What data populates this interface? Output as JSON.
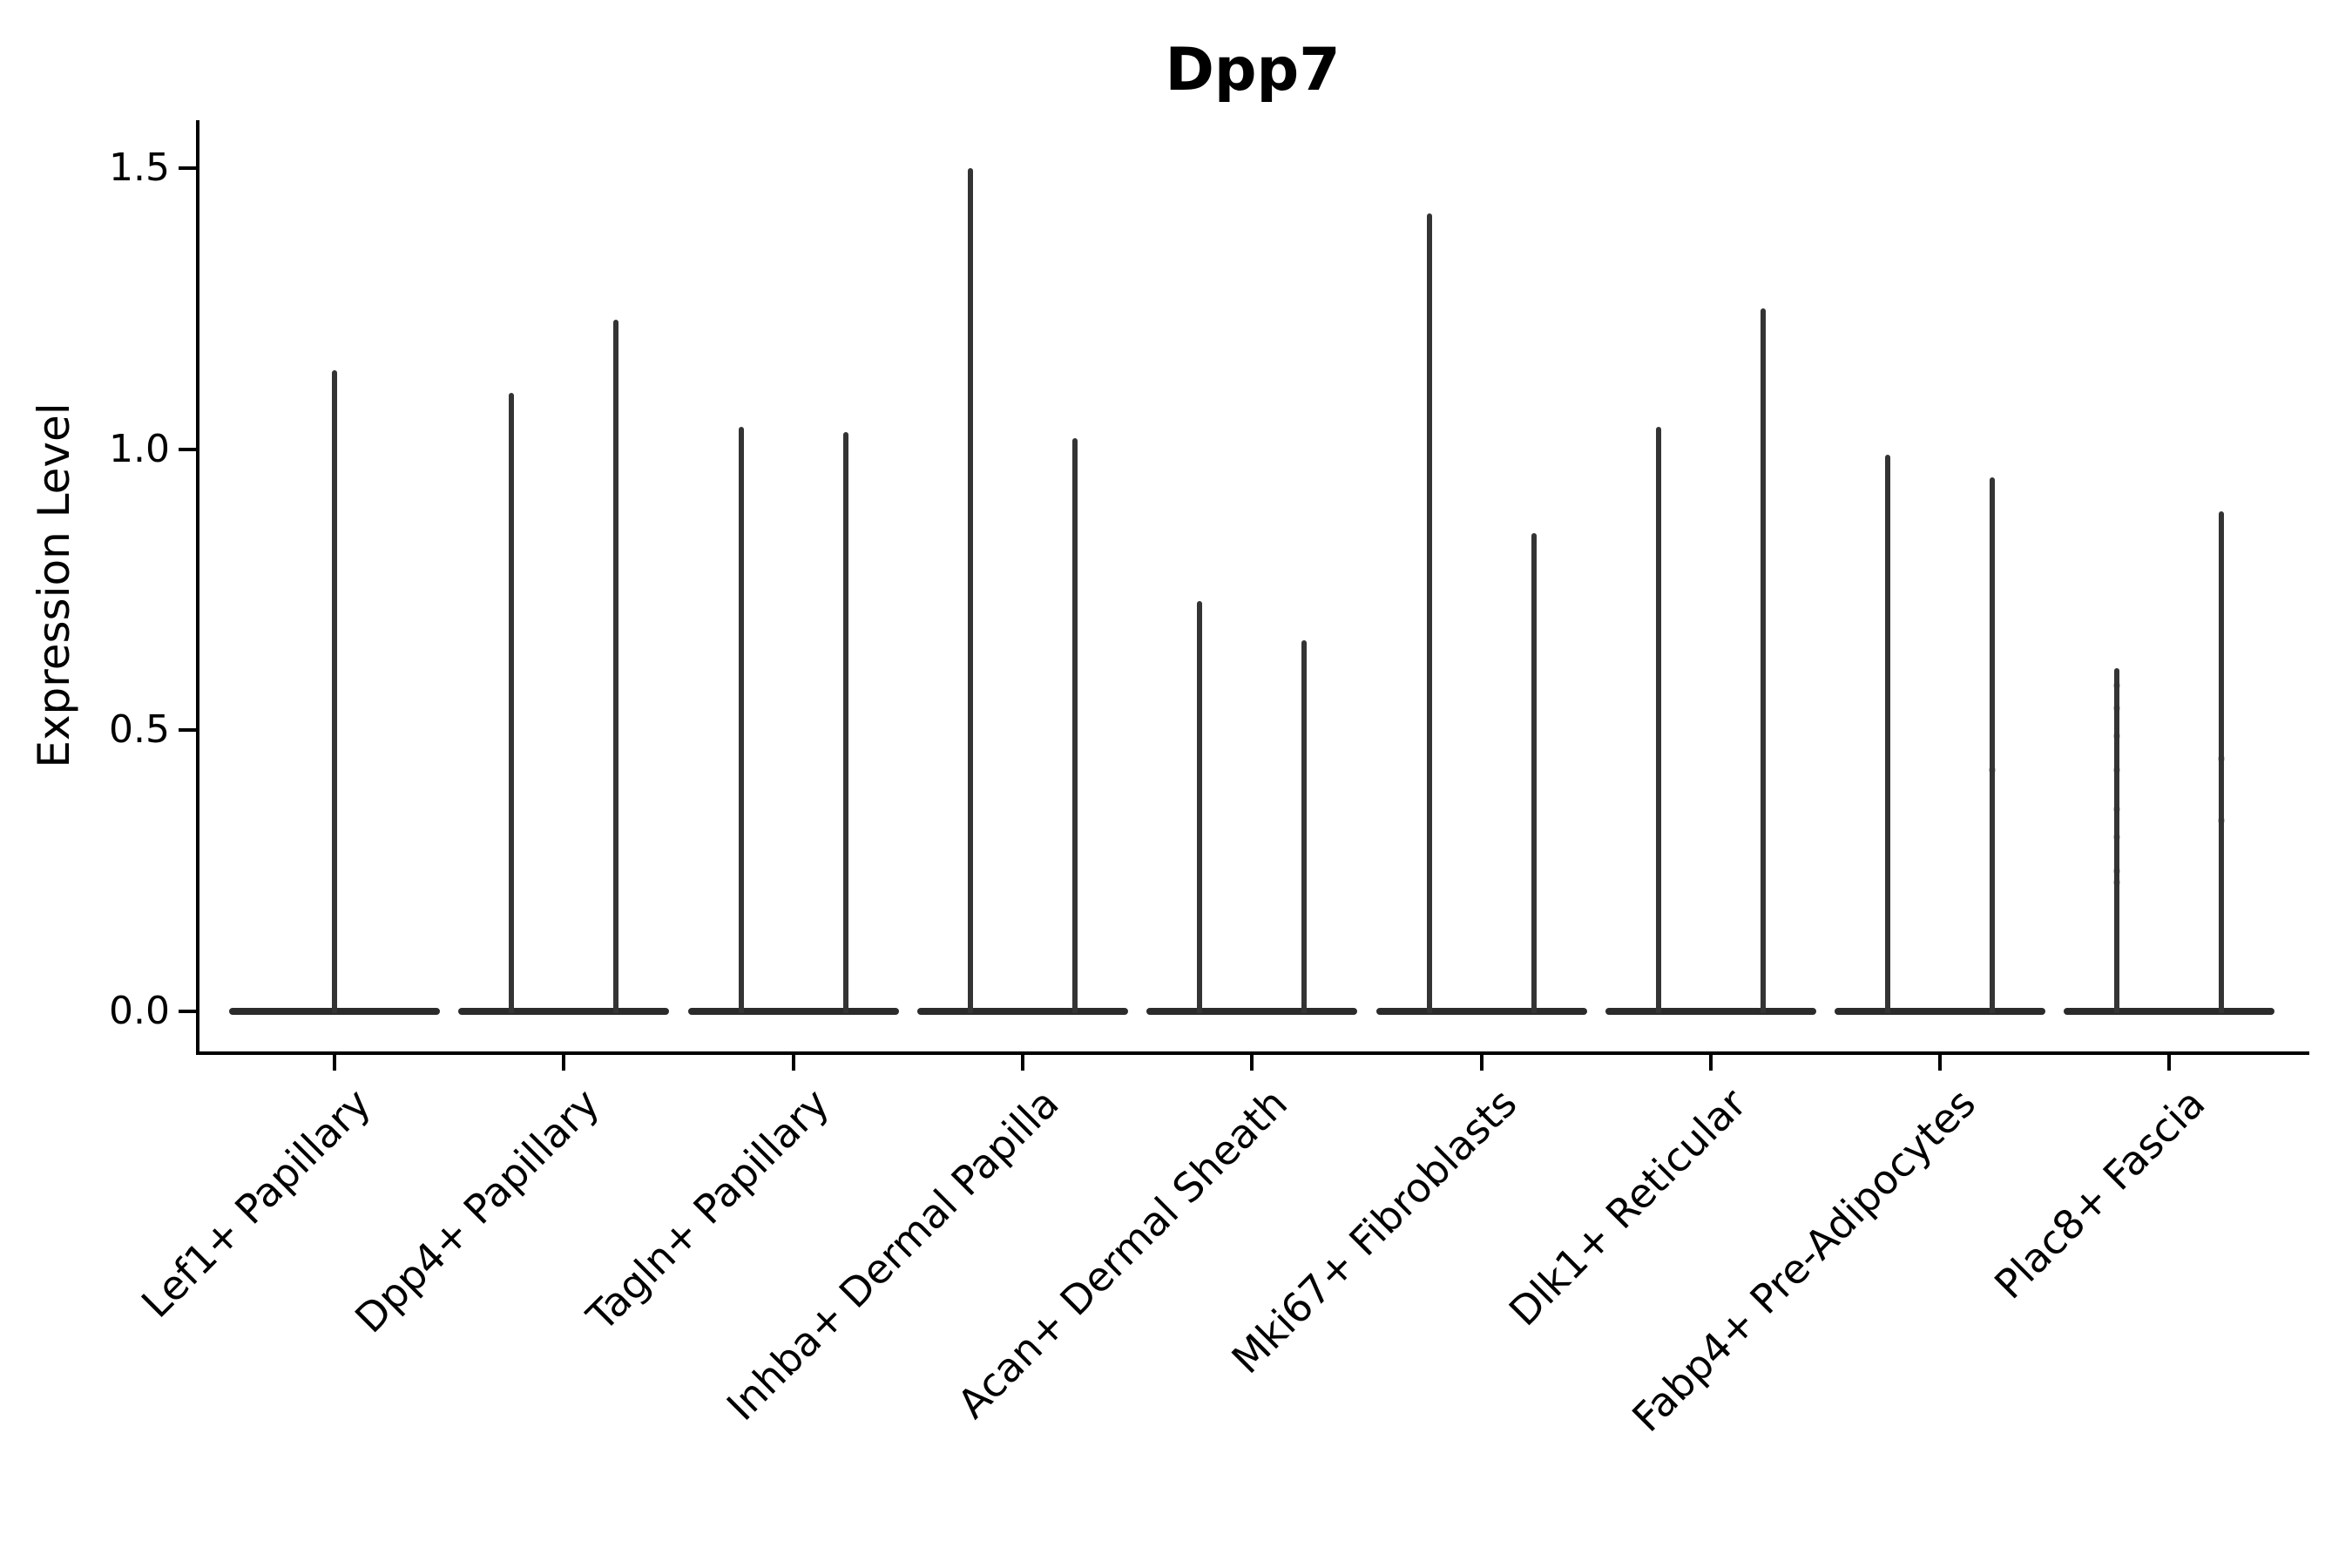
{
  "title": "Dpp7",
  "y_axis_label": "Expression Level",
  "colors": {
    "violin": "#343434",
    "violin_base": "#2b2b2b",
    "axis": "#000000",
    "background": "#ffffff"
  },
  "chart_data": {
    "type": "violin",
    "title": "Dpp7",
    "xlabel": "",
    "ylabel": "Expression Level",
    "yticks": [
      1.5,
      1.0,
      0.5,
      0.0
    ],
    "ylim": [
      -0.07,
      1.59
    ],
    "grid": false,
    "legend": null,
    "description": "Seurat-style stacked violin plot of Dpp7 expression; each cluster shows a flat near-zero violin body with one or two thin max-expression spikes",
    "categories": [
      "Lef1+ Papillary",
      "Dpp4+ Papillary",
      "Tagln+ Papillary",
      "Inhba+ Dermal Papilla",
      "Acan+ Dermal Sheath",
      "Mki67+ Fibroblasts",
      "Dlk1+ Reticular",
      "Fabp4+ Pre-Adipocytes",
      "Plac8+ Fascia"
    ],
    "baseline_value": 0.0,
    "violins": [
      {
        "category": "Lef1+ Papillary",
        "spikes": [
          {
            "offset": 0,
            "max": 1.14,
            "dots": []
          }
        ]
      },
      {
        "category": "Dpp4+ Papillary",
        "spikes": [
          {
            "offset": -60,
            "max": 1.1,
            "dots": []
          },
          {
            "offset": 60,
            "max": 1.23,
            "dots": []
          }
        ]
      },
      {
        "category": "Tagln+ Papillary",
        "spikes": [
          {
            "offset": -60,
            "max": 1.04,
            "dots": []
          },
          {
            "offset": 60,
            "max": 1.03,
            "dots": []
          }
        ]
      },
      {
        "category": "Inhba+ Dermal Papilla",
        "spikes": [
          {
            "offset": -60,
            "max": 1.5,
            "dots": []
          },
          {
            "offset": 60,
            "max": 1.02,
            "dots": []
          }
        ]
      },
      {
        "category": "Acan+ Dermal Sheath",
        "spikes": [
          {
            "offset": -60,
            "max": 0.73,
            "dots": []
          },
          {
            "offset": 60,
            "max": 0.66,
            "dots": []
          }
        ]
      },
      {
        "category": "Mki67+ Fibroblasts",
        "spikes": [
          {
            "offset": -60,
            "max": 1.42,
            "dots": []
          },
          {
            "offset": 60,
            "max": 0.85,
            "dots": []
          }
        ]
      },
      {
        "category": "Dlk1+ Reticular",
        "spikes": [
          {
            "offset": -60,
            "max": 1.04,
            "dots": []
          },
          {
            "offset": 60,
            "max": 1.25,
            "dots": []
          }
        ]
      },
      {
        "category": "Fabp4+ Pre-Adipocytes",
        "spikes": [
          {
            "offset": -60,
            "max": 0.99,
            "dots": []
          },
          {
            "offset": 60,
            "max": 0.95,
            "dots": [
              0.43
            ]
          }
        ]
      },
      {
        "category": "Plac8+ Fascia",
        "spikes": [
          {
            "offset": -60,
            "max": 0.61,
            "dots": [
              0.58,
              0.54,
              0.49,
              0.43,
              0.36,
              0.31,
              0.25,
              0.23
            ]
          },
          {
            "offset": 60,
            "max": 0.89,
            "dots": [
              0.45,
              0.34
            ]
          }
        ]
      }
    ]
  }
}
